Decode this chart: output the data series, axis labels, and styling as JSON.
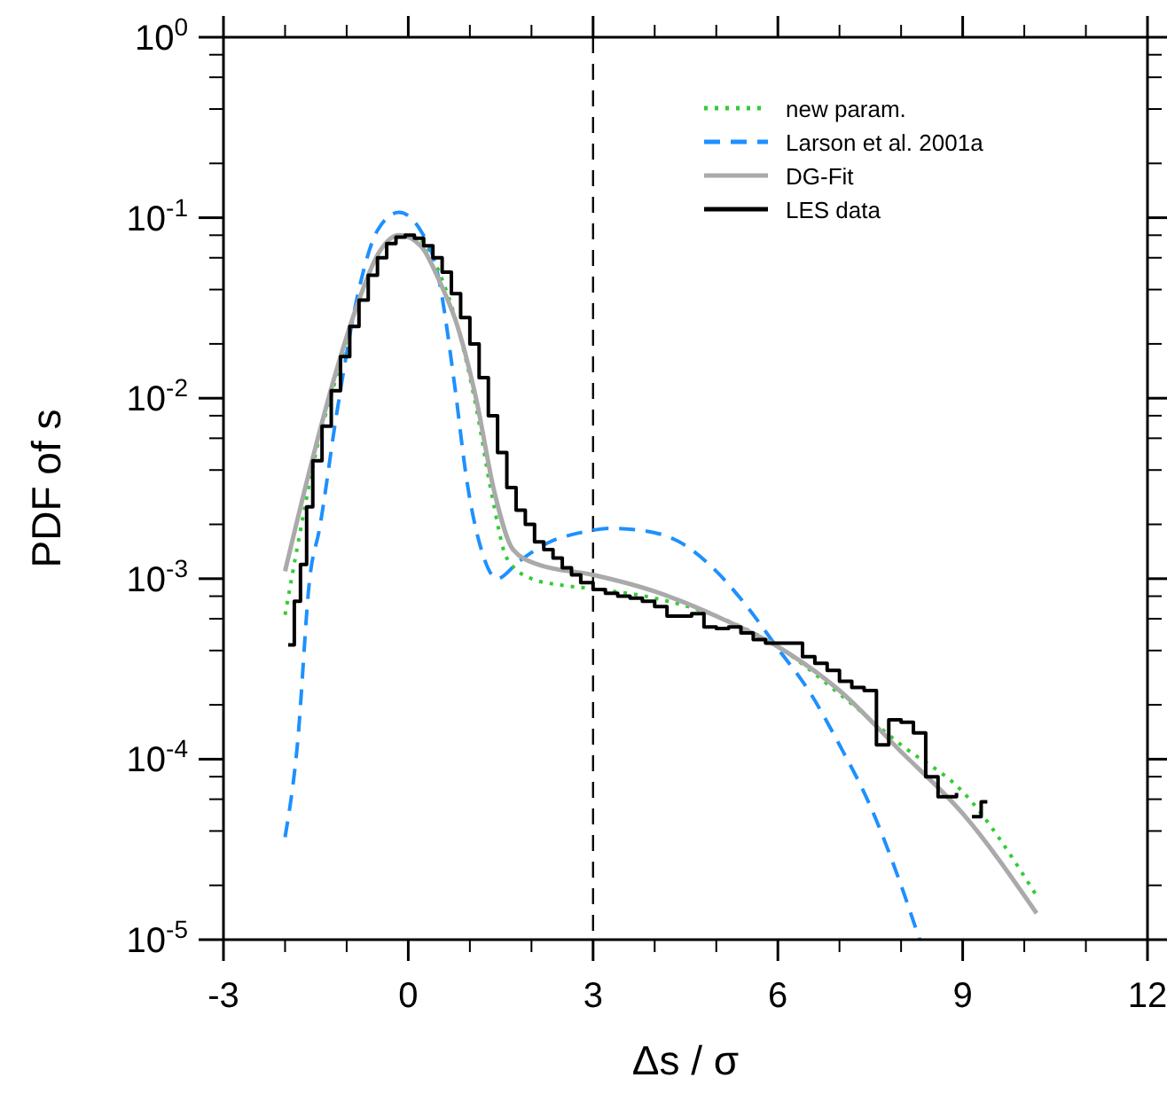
{
  "chart_data": {
    "type": "line",
    "xlabel": "Δs / σ",
    "ylabel": "PDF of s",
    "log": "y",
    "xlim": [
      -3,
      12
    ],
    "ylim": [
      1e-05,
      1
    ],
    "xticks": [
      -3,
      {
        "value": -2,
        "label": null
      },
      {
        "value": -1,
        "label": null
      },
      0,
      {
        "value": 1,
        "label": null
      },
      {
        "value": 2,
        "label": null
      },
      3,
      {
        "value": 4,
        "label": null
      },
      {
        "value": 5,
        "label": null
      },
      6,
      {
        "value": 7,
        "label": null
      },
      {
        "value": 8,
        "label": null
      },
      9,
      {
        "value": 10,
        "label": null
      },
      {
        "value": 11,
        "label": null
      },
      12
    ],
    "yticks": [
      {
        "value": 1e-05,
        "label": "10$^{-5}$"
      },
      {
        "value": 2e-05,
        "label": null
      },
      {
        "value": 4e-05,
        "label": null
      },
      {
        "value": 6e-05,
        "label": null
      },
      {
        "value": 8e-05,
        "label": null
      },
      {
        "value": 0.0001,
        "label": "10$^{-4}$"
      },
      {
        "value": 0.0002,
        "label": null
      },
      {
        "value": 0.0004,
        "label": null
      },
      {
        "value": 0.0006,
        "label": null
      },
      {
        "value": 0.0008,
        "label": null
      },
      {
        "value": 0.001,
        "label": "10$^{-3}$"
      },
      {
        "value": 0.002,
        "label": null
      },
      {
        "value": 0.004,
        "label": null
      },
      {
        "value": 0.006,
        "label": null
      },
      {
        "value": 0.008,
        "label": null
      },
      {
        "value": 0.01,
        "label": "10$^{-2}$"
      },
      {
        "value": 0.02,
        "label": null
      },
      {
        "value": 0.04,
        "label": null
      },
      {
        "value": 0.06,
        "label": null
      },
      {
        "value": 0.08,
        "label": null
      },
      {
        "value": 0.1,
        "label": "10$^{-1}$"
      },
      {
        "value": 0.2,
        "label": null
      },
      {
        "value": 0.4,
        "label": null
      },
      {
        "value": 0.6,
        "label": null
      },
      {
        "value": 0.8,
        "label": null
      },
      {
        "value": 1,
        "label": "10$^{0}$"
      }
    ],
    "grid": false,
    "legend": "top right",
    "ref_lines": [
      {
        "axis": "x",
        "value": 3,
        "color": "#000000",
        "line_style": "dashed"
      }
    ],
    "series": [
      {
        "name": "new param.",
        "color": "#33cc33",
        "line_style": "dotted",
        "x": [
          -2,
          -1.8,
          -1.5,
          -1.2,
          -0.8,
          -0.5,
          -0.15,
          0.2,
          0.5,
          0.8,
          1.1,
          1.35,
          1.6,
          2,
          2.5,
          3,
          4,
          5,
          6,
          7,
          8,
          9,
          10.2
        ],
        "values": [
          0.00063,
          0.0015,
          0.005,
          0.012,
          0.035,
          0.062,
          0.08,
          0.075,
          0.05,
          0.025,
          0.009,
          0.003,
          0.0013,
          0.001,
          0.00092,
          0.00088,
          0.00078,
          0.00062,
          0.00042,
          0.00023,
          0.00012,
          6.6e-05,
          1.75e-05
        ]
      },
      {
        "name": "Larson et al. 2001a",
        "color": "#1e90ff",
        "line_style": "dashed",
        "x": [
          -2,
          -1.8,
          -1.6,
          -1.44,
          -1.16,
          -0.78,
          -0.5,
          -0.15,
          0.2,
          0.5,
          0.75,
          0.95,
          1.2,
          1.44,
          1.8,
          2.3,
          2.8,
          3.3,
          3.8,
          4.4,
          5,
          5.5,
          6,
          6.5,
          7,
          7.5,
          8,
          8.3
        ],
        "values": [
          3.7e-05,
          0.00012,
          0.001,
          0.0019,
          0.0083,
          0.043,
          0.085,
          0.107,
          0.085,
          0.045,
          0.012,
          0.0035,
          0.0014,
          0.001,
          0.00125,
          0.0016,
          0.0018,
          0.0019,
          0.00185,
          0.0016,
          0.0011,
          0.0007,
          0.00041,
          0.00024,
          0.00012,
          5.5e-05,
          2e-05,
          1e-05
        ]
      },
      {
        "name": "DG-Fit",
        "color": "#aaaaaa",
        "line_style": "solid",
        "x": [
          -2,
          -1.6,
          -1.2,
          -0.8,
          -0.5,
          -0.15,
          0.2,
          0.5,
          0.8,
          1.1,
          1.4,
          1.7,
          2.1,
          3,
          4,
          5,
          6,
          7,
          8,
          9,
          10.2
        ],
        "values": [
          0.0011,
          0.004,
          0.013,
          0.035,
          0.062,
          0.08,
          0.07,
          0.045,
          0.025,
          0.01,
          0.003,
          0.00145,
          0.0012,
          0.00105,
          0.00085,
          0.00062,
          0.00042,
          0.00024,
          0.00011,
          5e-05,
          1.4e-05
        ]
      },
      {
        "name": "LES data",
        "color": "#000000",
        "type": "step",
        "line_style": "solid",
        "x": [
          -1.95,
          -1.85,
          -1.75,
          -1.65,
          -1.55,
          -1.4,
          -1.25,
          -1.1,
          -0.95,
          -0.8,
          -0.65,
          -0.5,
          -0.35,
          -0.2,
          -0.05,
          0.1,
          0.25,
          0.4,
          0.55,
          0.7,
          0.85,
          1,
          1.15,
          1.3,
          1.45,
          1.6,
          1.75,
          1.9,
          2.05,
          2.2,
          2.35,
          2.5,
          2.65,
          2.8,
          3,
          3.2,
          3.4,
          3.6,
          3.8,
          4,
          4.2,
          4.4,
          4.6,
          4.8,
          5,
          5.2,
          5.4,
          5.6,
          5.8,
          6,
          6.2,
          6.4,
          6.6,
          6.8,
          7,
          7.2,
          7.4,
          7.6,
          7.8,
          8,
          8.2,
          8.4,
          8.6,
          8.9,
          9.05,
          9.15,
          9.3,
          9.4
        ],
        "values": [
          0.00043,
          0.00075,
          0.0012,
          0.0025,
          0.0045,
          0.007,
          0.011,
          0.017,
          0.025,
          0.035,
          0.048,
          0.06,
          0.072,
          0.078,
          0.08,
          0.077,
          0.07,
          0.06,
          0.05,
          0.038,
          0.028,
          0.02,
          0.013,
          0.008,
          0.005,
          0.0032,
          0.0024,
          0.002,
          0.0016,
          0.00145,
          0.0013,
          0.00115,
          0.00105,
          0.00095,
          0.00087,
          0.00083,
          0.0008,
          0.00078,
          0.00075,
          0.0007,
          0.00062,
          0.00062,
          0.00064,
          0.00054,
          0.00053,
          0.00054,
          0.0005,
          0.00046,
          0.00044,
          0.00044,
          0.00044,
          0.00037,
          0.00034,
          0.00031,
          0.00027,
          0.00025,
          0.00024,
          0.00012,
          0.000165,
          0.00016,
          0.00014,
          8e-05,
          6.2e-05,
          6.5e-05,
          null,
          4.8e-05,
          5.8e-05,
          5.8e-05
        ]
      }
    ]
  }
}
